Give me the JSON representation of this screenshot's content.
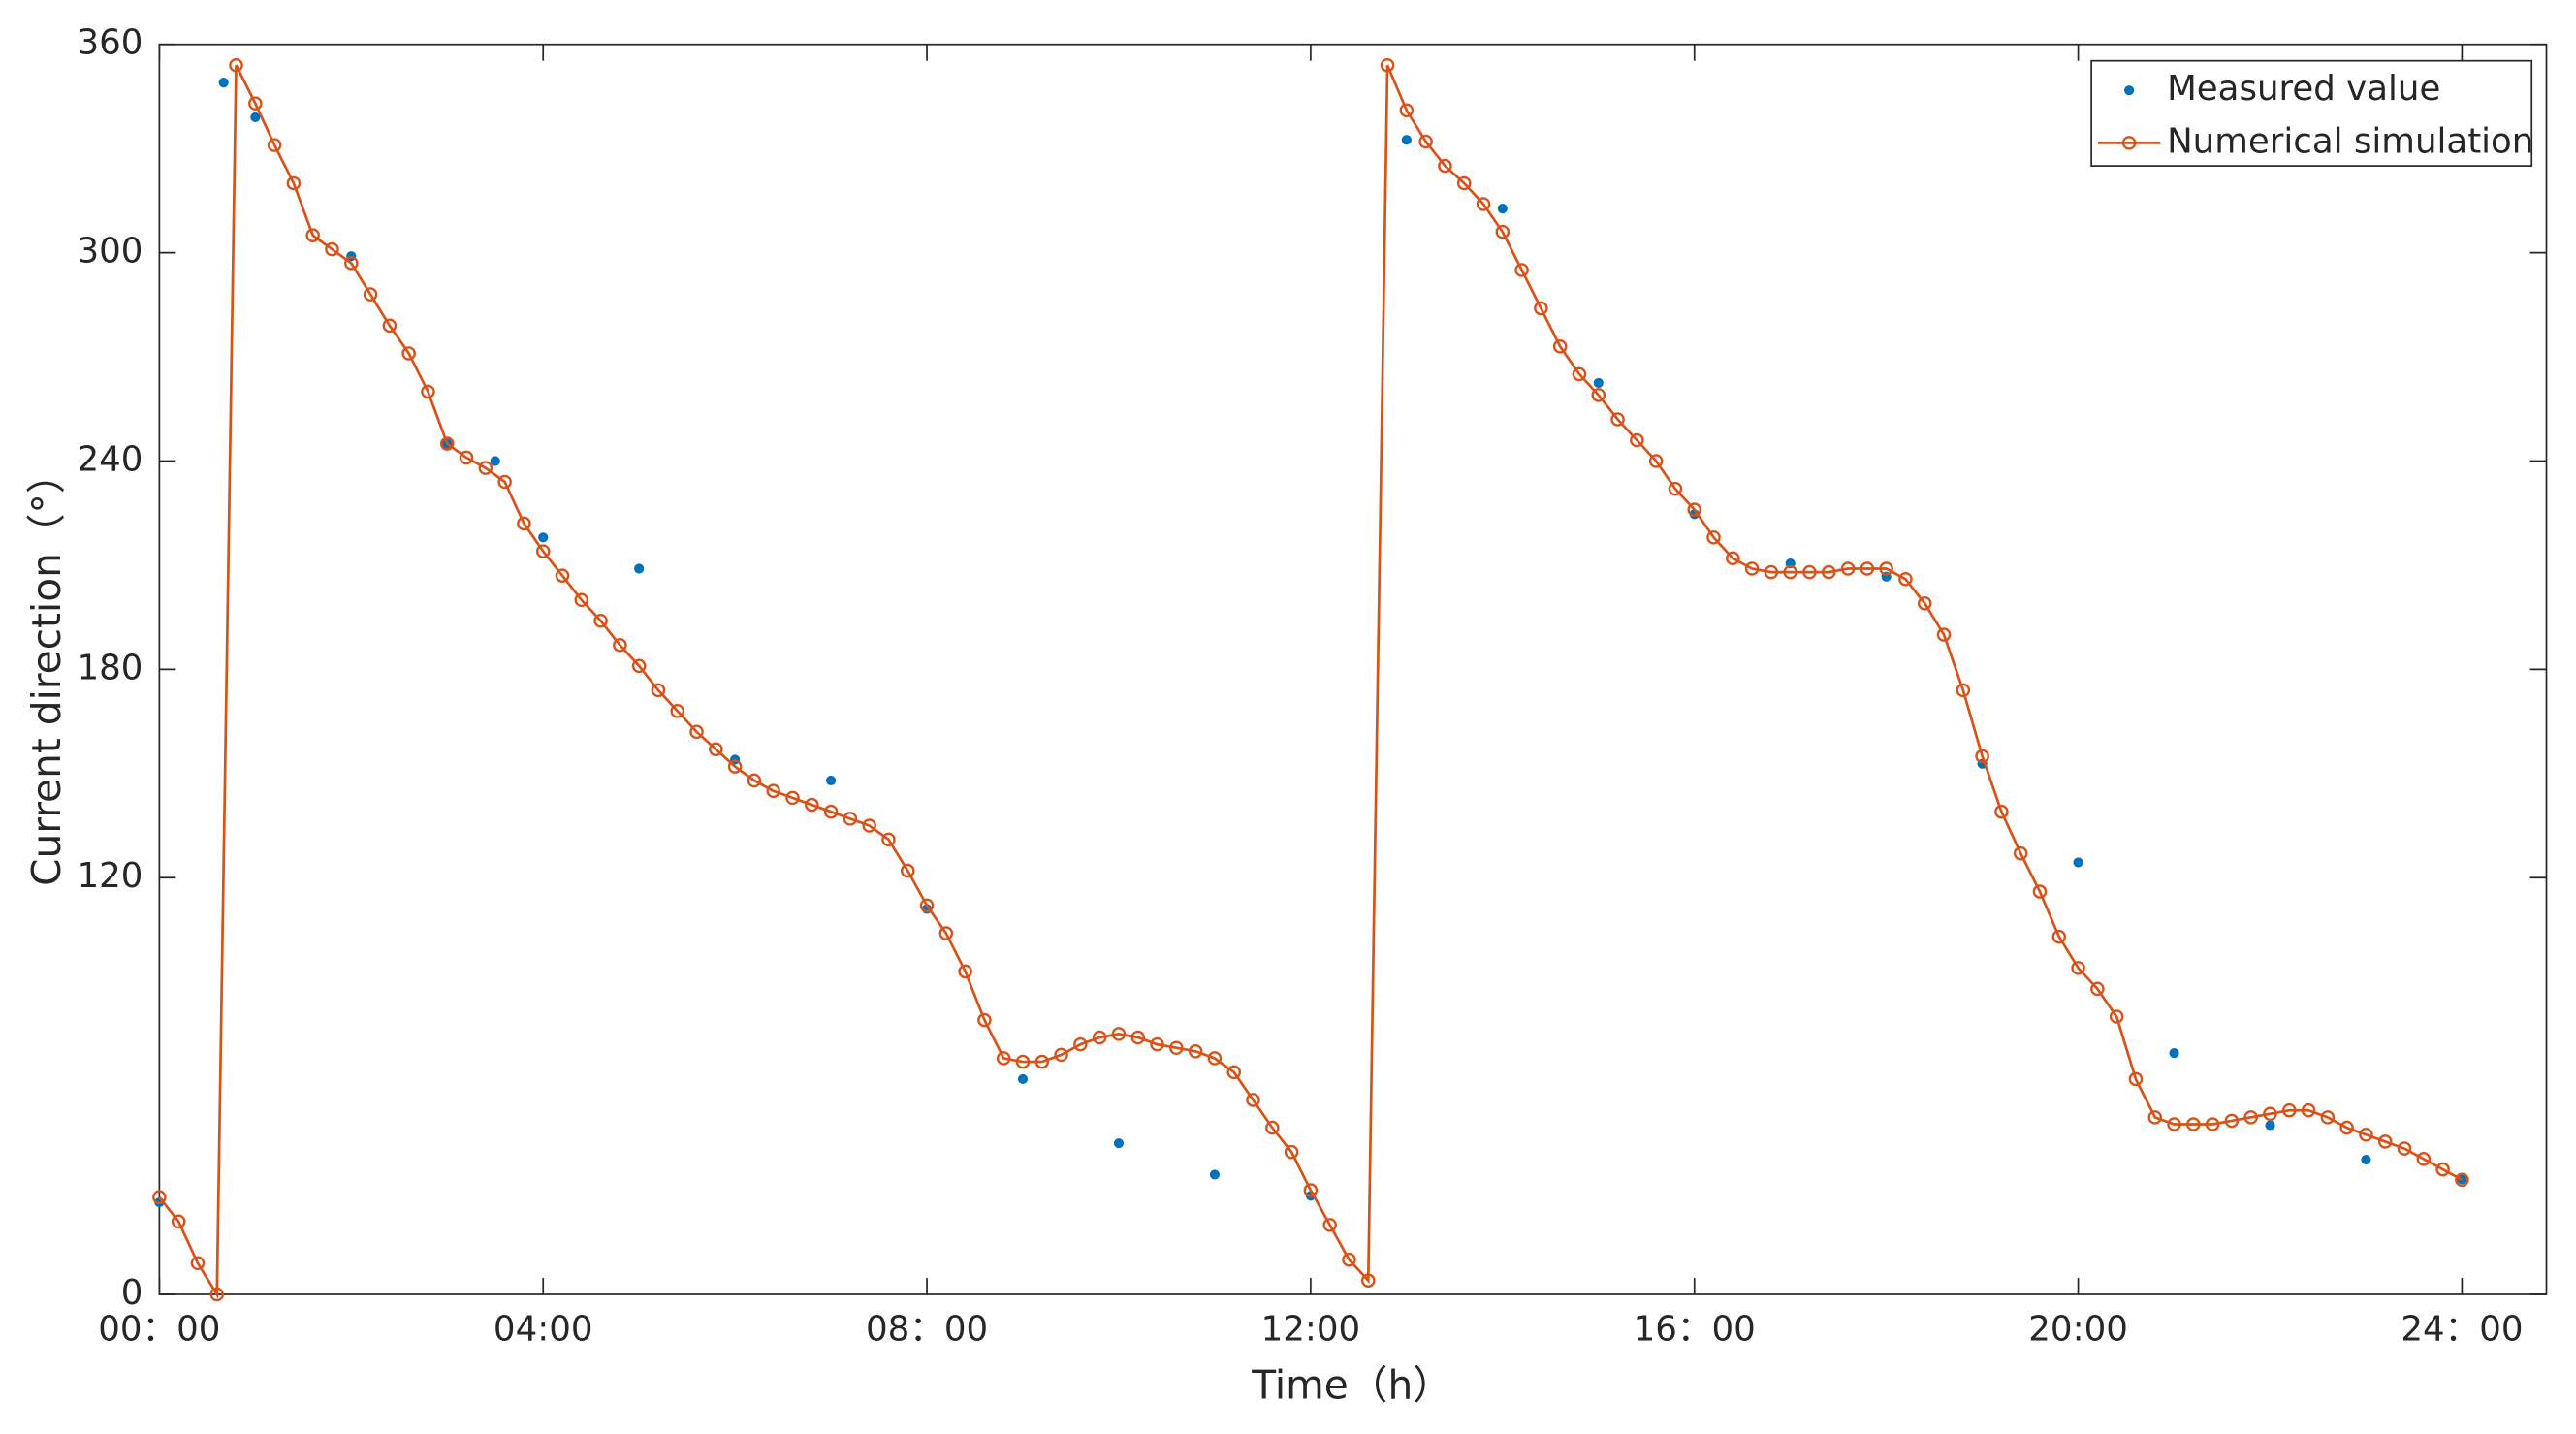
{
  "chart_data": {
    "type": "line",
    "xlabel": "Time（h）",
    "ylabel": "Current direction（°）",
    "xlim": [
      0,
      24.88
    ],
    "ylim": [
      0,
      360
    ],
    "xticks": [
      {
        "value": 0,
        "label": "00：00"
      },
      {
        "value": 4,
        "label": "04:00"
      },
      {
        "value": 8,
        "label": "08：00"
      },
      {
        "value": 12,
        "label": "12:00"
      },
      {
        "value": 16,
        "label": "16：00"
      },
      {
        "value": 20,
        "label": "20:00"
      },
      {
        "value": 24,
        "label": "24：00"
      }
    ],
    "yticks": [
      0,
      120,
      180,
      240,
      300,
      360
    ],
    "legend": "upper right",
    "series": [
      {
        "name": "Measured value",
        "color": "#0072BD",
        "marker": "dot",
        "x": [
          0,
          0.67,
          1,
          2,
          3,
          3.5,
          4,
          5,
          6,
          7,
          8,
          9,
          10,
          11,
          12,
          13,
          14,
          15,
          16,
          17,
          18,
          19,
          20,
          21,
          22,
          23,
          24
        ],
        "values": [
          26.5,
          349,
          339,
          299,
          245,
          240,
          218,
          209,
          154,
          148,
          111,
          62,
          43.5,
          34.5,
          28.4,
          332.5,
          312.7,
          262.5,
          224.7,
          210.5,
          206.7,
          152.8,
          124.4,
          69.5,
          48.7,
          38.8,
          33.1
        ]
      },
      {
        "name": "Numerical simulation",
        "color": "#D95319",
        "marker": "circle",
        "x": [
          0,
          0.2,
          0.4,
          0.6,
          0.8,
          1,
          1.2,
          1.4,
          1.6,
          1.8,
          2,
          2.2,
          2.4,
          2.6,
          2.8,
          3,
          3.2,
          3.4,
          3.6,
          3.8,
          4,
          4.2,
          4.4,
          4.6,
          4.8,
          5,
          5.2,
          5.4,
          5.6,
          5.8,
          6,
          6.2,
          6.4,
          6.6,
          6.8,
          7,
          7.2,
          7.4,
          7.6,
          7.8,
          8,
          8.2,
          8.4,
          8.6,
          8.8,
          9,
          9.2,
          9.4,
          9.6,
          9.8,
          10,
          10.2,
          10.4,
          10.6,
          10.8,
          11,
          11.2,
          11.4,
          11.6,
          11.8,
          12,
          12.2,
          12.4,
          12.6,
          12.8,
          13,
          13.2,
          13.4,
          13.6,
          13.8,
          14,
          14.2,
          14.4,
          14.6,
          14.8,
          15,
          15.2,
          15.4,
          15.6,
          15.8,
          16,
          16.2,
          16.4,
          16.6,
          16.8,
          17,
          17.2,
          17.4,
          17.6,
          17.8,
          18,
          18.2,
          18.4,
          18.6,
          18.8,
          19,
          19.2,
          19.4,
          19.6,
          19.8,
          20,
          20.2,
          20.4,
          20.6,
          20.8,
          21,
          21.2,
          21.4,
          21.6,
          21.8,
          22,
          22.2,
          22.4,
          22.6,
          22.8,
          23,
          23.2,
          23.4,
          23.6,
          23.8,
          24
        ],
        "values": [
          28,
          21,
          9,
          0,
          354,
          343,
          331,
          320,
          305,
          301,
          297,
          288,
          279,
          271,
          260,
          245,
          241,
          238,
          234,
          222,
          214,
          207,
          200,
          194,
          187,
          181,
          174,
          168,
          162,
          157,
          152,
          148,
          145,
          143,
          141,
          139,
          137,
          135,
          131,
          122,
          112,
          104,
          93,
          79,
          68,
          67,
          67,
          69,
          72,
          74,
          75,
          74,
          72,
          71,
          70,
          68,
          64,
          56,
          48,
          41,
          30,
          20,
          10,
          4,
          354,
          341,
          332,
          325,
          320,
          314,
          306,
          295,
          284,
          273,
          265,
          259,
          252,
          246,
          240,
          232,
          226,
          218,
          212,
          209,
          208,
          208,
          208,
          208,
          209,
          209,
          209,
          206,
          199,
          190,
          174,
          155,
          139,
          127,
          116,
          103,
          94,
          88,
          80,
          62,
          51,
          49,
          49,
          49,
          50,
          51,
          52,
          53,
          53,
          51,
          48,
          46,
          44,
          42,
          39,
          36,
          33
        ]
      }
    ]
  }
}
